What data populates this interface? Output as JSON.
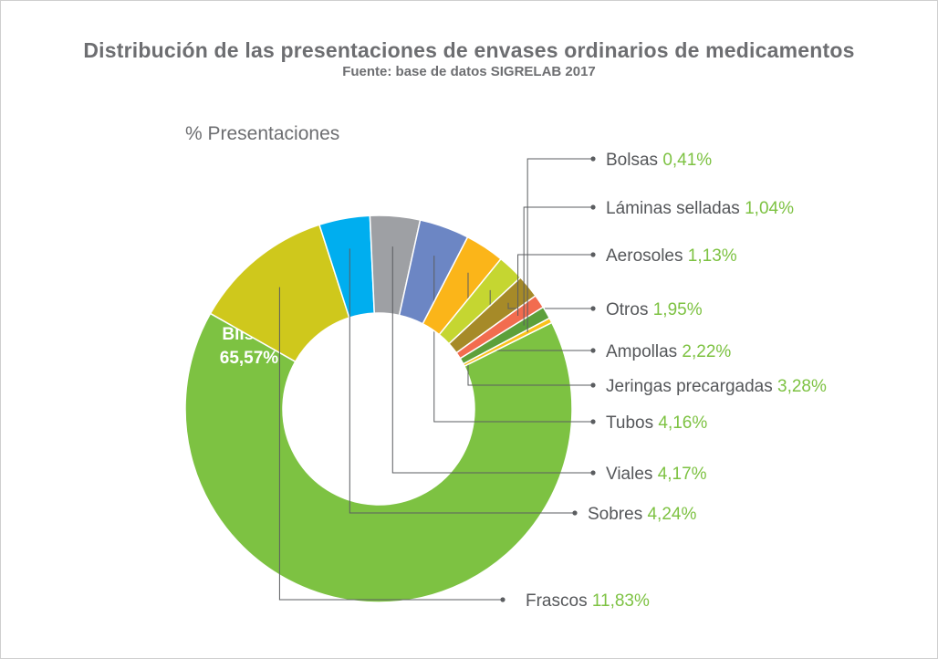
{
  "chart_data": {
    "type": "pie",
    "title": "Distribución de las presentaciones de envases ordinarios de medicamentos",
    "subtitle": "Fuente: base de datos SIGRELAB 2017",
    "ylabel": "% Presentaciones",
    "slices": [
      {
        "name": "Blíster",
        "value": 65.57,
        "value_label": "65,57%",
        "color": "#7dc242"
      },
      {
        "name": "Frascos",
        "value": 11.83,
        "value_label": "11,83%",
        "color": "#cfc81c"
      },
      {
        "name": "Sobres",
        "value": 4.24,
        "value_label": "4,24%",
        "color": "#00aeef"
      },
      {
        "name": "Viales",
        "value": 4.17,
        "value_label": "4,17%",
        "color": "#9ea0a4"
      },
      {
        "name": "Tubos",
        "value": 4.16,
        "value_label": "4,16%",
        "color": "#6c86c4"
      },
      {
        "name": "Jeringas precargadas",
        "value": 3.28,
        "value_label": "3,28%",
        "color": "#fbb519"
      },
      {
        "name": "Ampollas",
        "value": 2.22,
        "value_label": "2,22%",
        "color": "#c5d631"
      },
      {
        "name": "Otros",
        "value": 1.95,
        "value_label": "1,95%",
        "color": "#a68a28"
      },
      {
        "name": "Aerosoles",
        "value": 1.13,
        "value_label": "1,13%",
        "color": "#f26c4f"
      },
      {
        "name": "Láminas selladas",
        "value": 1.04,
        "value_label": "1,04%",
        "color": "#5da03a"
      },
      {
        "name": "Bolsas",
        "value": 0.41,
        "value_label": "0,41%",
        "color": "#f9c21b"
      }
    ]
  }
}
